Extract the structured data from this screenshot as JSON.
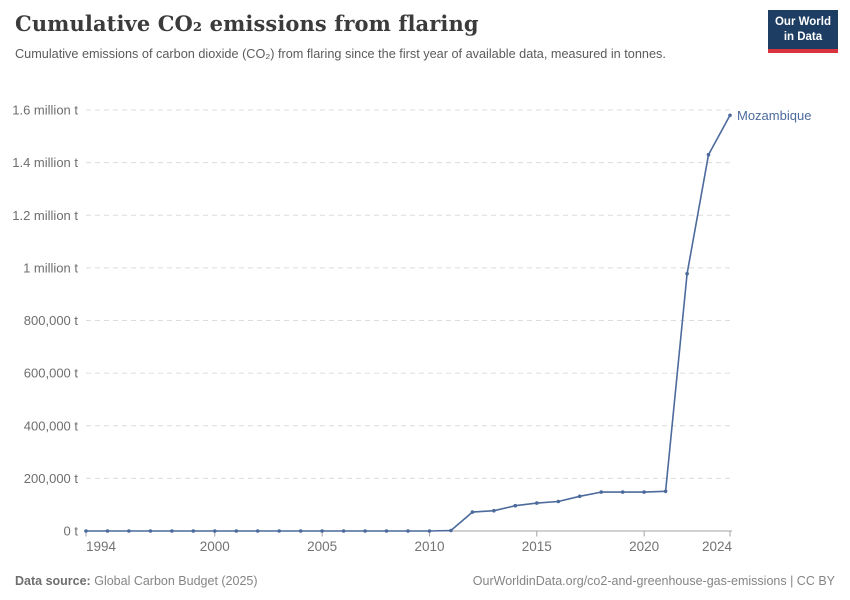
{
  "header": {
    "title": "Cumulative CO₂ emissions from flaring",
    "subtitle": "Cumulative emissions of carbon dioxide (CO₂) from flaring since the first year of available data, measured in tonnes.",
    "logo": {
      "line1": "Our World",
      "line2": "in Data"
    }
  },
  "chart_data": {
    "type": "line",
    "title": "Cumulative CO₂ emissions from flaring",
    "xlabel": "",
    "ylabel": "",
    "xlim": [
      1994,
      2024
    ],
    "ylim": [
      0,
      1600000
    ],
    "grid": "horizontal-dashed",
    "legend_position": "end-of-line-label",
    "x_ticks": [
      1994,
      2000,
      2005,
      2010,
      2015,
      2020,
      2024
    ],
    "y_ticks": [
      {
        "value": 0,
        "label": "0 t"
      },
      {
        "value": 200000,
        "label": "200,000 t"
      },
      {
        "value": 400000,
        "label": "400,000 t"
      },
      {
        "value": 600000,
        "label": "600,000 t"
      },
      {
        "value": 800000,
        "label": "800,000 t"
      },
      {
        "value": 1000000,
        "label": "1 million t"
      },
      {
        "value": 1200000,
        "label": "1.2 million t"
      },
      {
        "value": 1400000,
        "label": "1.4 million t"
      },
      {
        "value": 1600000,
        "label": "1.6 million t"
      }
    ],
    "series": [
      {
        "name": "Mozambique",
        "color": "#4c6a9c",
        "x": [
          1994,
          1995,
          1996,
          1997,
          1998,
          1999,
          2000,
          2001,
          2002,
          2003,
          2004,
          2005,
          2006,
          2007,
          2008,
          2009,
          2010,
          2011,
          2012,
          2013,
          2014,
          2015,
          2016,
          2017,
          2018,
          2019,
          2020,
          2021,
          2022,
          2023,
          2024
        ],
        "values": [
          0,
          0,
          0,
          0,
          0,
          0,
          0,
          0,
          0,
          0,
          0,
          0,
          0,
          0,
          0,
          0,
          0,
          2000,
          72000,
          77000,
          96000,
          106000,
          112000,
          132000,
          148000,
          148000,
          148000,
          151000,
          978000,
          1430000,
          1580000
        ]
      }
    ]
  },
  "footer": {
    "data_source_label": "Data source:",
    "data_source_value": "Global Carbon Budget (2025)",
    "attribution": "OurWorldinData.org/co2-and-greenhouse-gas-emissions | CC BY"
  },
  "colors": {
    "line": "#4c6a9c",
    "logo_bg": "#1d3d63",
    "logo_accent": "#d9343e",
    "grid": "#dcdcdc",
    "axis": "#a3a3a3"
  }
}
